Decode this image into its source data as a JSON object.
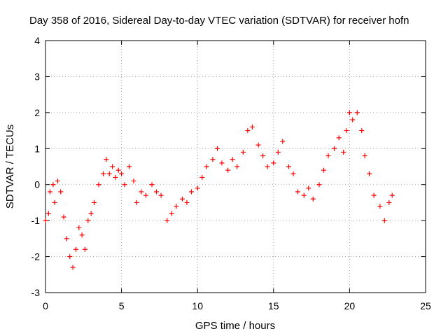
{
  "chart_data": {
    "type": "scatter",
    "title": "Day 358 of 2016, Sidereal Day-to-day VTEC variation (SDTVAR) for receiver hofn",
    "xlabel": "GPS time / hours",
    "ylabel": "SDTVAR / TECUs",
    "xlim": [
      0,
      25
    ],
    "ylim": [
      -3,
      4
    ],
    "xticks": [
      "0",
      "5",
      "10",
      "15",
      "20",
      "25"
    ],
    "yticks": [
      "-3",
      "-2",
      "-1",
      "0",
      "1",
      "2",
      "3",
      "4"
    ],
    "grid": true,
    "marker": "+",
    "color": "#ff0000",
    "series": [
      {
        "name": "SDTVAR",
        "x": [
          0.0,
          0.2,
          0.3,
          0.5,
          0.6,
          0.8,
          1.0,
          1.2,
          1.4,
          1.6,
          1.8,
          2.0,
          2.2,
          2.4,
          2.6,
          2.8,
          3.0,
          3.2,
          3.5,
          3.8,
          4.0,
          4.2,
          4.4,
          4.6,
          4.8,
          5.0,
          5.2,
          5.5,
          5.8,
          6.0,
          6.3,
          6.6,
          7.0,
          7.3,
          7.6,
          8.0,
          8.3,
          8.6,
          9.0,
          9.3,
          9.6,
          10.0,
          10.3,
          10.6,
          11.0,
          11.3,
          11.6,
          12.0,
          12.3,
          12.6,
          13.0,
          13.3,
          13.6,
          14.0,
          14.3,
          14.6,
          15.0,
          15.3,
          15.6,
          16.0,
          16.3,
          16.6,
          17.0,
          17.3,
          17.6,
          18.0,
          18.3,
          18.6,
          19.0,
          19.3,
          19.6,
          19.8,
          20.0,
          20.2,
          20.5,
          20.8,
          21.0,
          21.3,
          21.6,
          22.0,
          22.3,
          22.6,
          22.8
        ],
        "y": [
          -1.0,
          -0.8,
          -0.2,
          0.0,
          -0.5,
          0.1,
          -0.2,
          -0.9,
          -1.5,
          -2.0,
          -2.3,
          -1.8,
          -1.2,
          -1.4,
          -1.8,
          -1.0,
          -0.8,
          -0.5,
          0.0,
          0.3,
          0.7,
          0.3,
          0.5,
          0.2,
          0.4,
          0.3,
          0.0,
          0.5,
          0.1,
          -0.5,
          -0.2,
          -0.3,
          0.0,
          -0.2,
          -0.3,
          -1.0,
          -0.8,
          -0.6,
          -0.4,
          -0.5,
          -0.2,
          -0.1,
          0.2,
          0.5,
          0.7,
          1.0,
          0.6,
          0.4,
          0.7,
          0.5,
          0.9,
          1.5,
          1.6,
          1.1,
          0.8,
          0.5,
          0.6,
          0.9,
          1.2,
          0.5,
          0.3,
          -0.2,
          -0.3,
          -0.1,
          -0.4,
          0.0,
          0.4,
          0.8,
          1.0,
          1.3,
          0.9,
          1.5,
          2.0,
          1.8,
          2.0,
          1.5,
          0.8,
          0.3,
          -0.3,
          -0.6,
          -1.0,
          -0.5,
          -0.3
        ]
      }
    ]
  }
}
